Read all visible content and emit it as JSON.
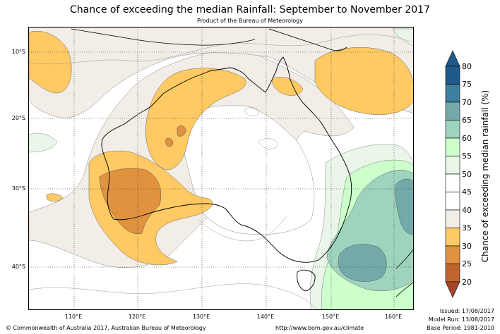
{
  "title": "Chance of exceeding the median Rainfall: September to November 2017",
  "subtitle": "Product of the Bureau of Meteorology",
  "lat_labels": [
    "10°S",
    "20°S",
    "30°S",
    "40°S"
  ],
  "lon_labels": [
    "110°E",
    "120°E",
    "130°E",
    "140°E",
    "150°E",
    "160°E"
  ],
  "colorbar": {
    "title": "Chance of exceeding median rainfall (%)",
    "ticks": [
      "80",
      "75",
      "70",
      "65",
      "60",
      "55",
      "50",
      "45",
      "40",
      "35",
      "30",
      "25",
      "20"
    ],
    "colors": [
      "#1f5a8a",
      "#3f7fa0",
      "#74a9a9",
      "#9ed3bd",
      "#ccffcc",
      "#eaf6e9",
      "#ffffff",
      "#ffffff",
      "#f2ede6",
      "#ffc963",
      "#e0923f",
      "#c1632f",
      "#a9452a"
    ]
  },
  "footer": {
    "copyright": "© Commonwealth of Australia 2017, Australian Bureau of Meteorology",
    "url": "http://www.bom.gov.au/climate"
  },
  "info": {
    "issued": "Issued: 17/08/2017",
    "model_run": "Model Run: 13/08/2017",
    "base_period": "Base Period: 1981-2010"
  }
}
